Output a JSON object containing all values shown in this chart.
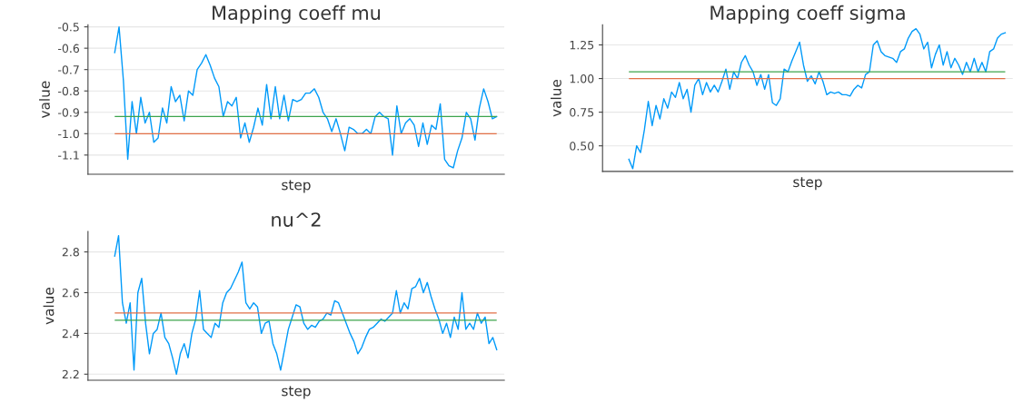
{
  "chart_data": [
    {
      "type": "line",
      "title": "Mapping coeff mu",
      "xlabel": "step",
      "ylabel": "value",
      "ylim": [
        -1.19,
        -0.49
      ],
      "yticks": [
        {
          "value": -1.1,
          "label": "-1.1"
        },
        {
          "value": -1.0,
          "label": "-1.0"
        },
        {
          "value": -0.9,
          "label": "-0.9"
        },
        {
          "value": -0.8,
          "label": "-0.8"
        },
        {
          "value": -0.7,
          "label": "-0.7"
        },
        {
          "value": -0.6,
          "label": "-0.6"
        },
        {
          "value": -0.5,
          "label": "-0.5"
        }
      ],
      "grid": "y",
      "tick_labels": "y",
      "categories": [
        null,
        null,
        null,
        null,
        null,
        null,
        null,
        null,
        null,
        null,
        null,
        null,
        null,
        null,
        null,
        null,
        null,
        null,
        null,
        null,
        null,
        null,
        null,
        null,
        null,
        null,
        null,
        null,
        null,
        null,
        null,
        null,
        null,
        null,
        null,
        null,
        null,
        null,
        null,
        null,
        null,
        null,
        null,
        null,
        null,
        null,
        null,
        null,
        null,
        null,
        null,
        null,
        null,
        null,
        null,
        null,
        null,
        null,
        null,
        null,
        null,
        null,
        null,
        null,
        null,
        null,
        null,
        null,
        null,
        null,
        null,
        null,
        null,
        null,
        null,
        null,
        null,
        null,
        null,
        null,
        null,
        null,
        null,
        null,
        null,
        null,
        null,
        null,
        null
      ],
      "series": [
        {
          "color": "#009af9",
          "values": [
            -0.62,
            -0.5,
            -0.75,
            -1.12,
            -0.85,
            -1.0,
            -0.83,
            -0.95,
            -0.9,
            -1.04,
            -1.02,
            -0.88,
            -0.95,
            -0.78,
            -0.85,
            -0.82,
            -0.94,
            -0.8,
            -0.82,
            -0.7,
            -0.67,
            -0.63,
            -0.68,
            -0.74,
            -0.78,
            -0.92,
            -0.85,
            -0.87,
            -0.83,
            -1.02,
            -0.95,
            -1.04,
            -0.97,
            -0.88,
            -0.96,
            -0.77,
            -0.93,
            -0.78,
            -0.93,
            -0.82,
            -0.94,
            -0.84,
            -0.85,
            -0.84,
            -0.81,
            -0.81,
            -0.79,
            -0.83,
            -0.9,
            -0.93,
            -0.99,
            -0.93,
            -1.0,
            -1.08,
            -0.97,
            -0.98,
            -1.0,
            -1.0,
            -0.98,
            -1.0,
            -0.92,
            -0.9,
            -0.92,
            -0.93,
            -1.1,
            -0.87,
            -1.0,
            -0.95,
            -0.93,
            -0.96,
            -1.06,
            -0.95,
            -1.05,
            -0.96,
            -0.98,
            -0.86,
            -1.12,
            -1.15,
            -1.16,
            -1.08,
            -1.02,
            -0.9,
            -0.93,
            -1.03,
            -0.88,
            -0.79,
            -0.85,
            -0.93,
            -0.92
          ]
        }
      ],
      "ref_lines": [
        {
          "axis": "y",
          "value": -0.92,
          "color": "#3da44d"
        },
        {
          "axis": "y",
          "value": -1.0,
          "color": "#e26f46"
        }
      ]
    },
    {
      "type": "line",
      "title": "Mapping coeff sigma",
      "xlabel": "step",
      "ylabel": "value",
      "ylim": [
        0.31,
        1.4
      ],
      "yticks": [
        {
          "value": 0.5,
          "label": "0.50"
        },
        {
          "value": 0.75,
          "label": "0.75"
        },
        {
          "value": 1.0,
          "label": "1.00"
        },
        {
          "value": 1.25,
          "label": "1.25"
        }
      ],
      "grid": "y",
      "tick_labels": "y",
      "categories": [
        null,
        null,
        null,
        null,
        null,
        null,
        null,
        null,
        null,
        null,
        null,
        null,
        null,
        null,
        null,
        null,
        null,
        null,
        null,
        null,
        null,
        null,
        null,
        null,
        null,
        null,
        null,
        null,
        null,
        null,
        null,
        null,
        null,
        null,
        null,
        null,
        null,
        null,
        null,
        null,
        null,
        null,
        null,
        null,
        null,
        null,
        null,
        null,
        null,
        null,
        null,
        null,
        null,
        null,
        null,
        null,
        null,
        null,
        null,
        null,
        null,
        null,
        null,
        null,
        null,
        null,
        null,
        null,
        null,
        null,
        null,
        null,
        null,
        null,
        null,
        null,
        null,
        null,
        null,
        null,
        null,
        null,
        null,
        null,
        null,
        null,
        null,
        null,
        null,
        null,
        null,
        null,
        null,
        null,
        null,
        null,
        null,
        null
      ],
      "series": [
        {
          "color": "#009af9",
          "values": [
            0.4,
            0.33,
            0.5,
            0.45,
            0.62,
            0.83,
            0.65,
            0.8,
            0.7,
            0.85,
            0.78,
            0.9,
            0.86,
            0.97,
            0.85,
            0.92,
            0.75,
            0.95,
            1.0,
            0.88,
            0.97,
            0.9,
            0.95,
            0.9,
            0.98,
            1.07,
            0.92,
            1.05,
            1.0,
            1.12,
            1.17,
            1.1,
            1.05,
            0.95,
            1.03,
            0.92,
            1.03,
            0.82,
            0.8,
            0.85,
            1.07,
            1.05,
            1.13,
            1.2,
            1.27,
            1.1,
            0.98,
            1.02,
            0.96,
            1.05,
            0.98,
            0.88,
            0.9,
            0.89,
            0.9,
            0.88,
            0.88,
            0.87,
            0.92,
            0.95,
            0.93,
            1.03,
            1.05,
            1.25,
            1.28,
            1.2,
            1.17,
            1.16,
            1.15,
            1.12,
            1.2,
            1.22,
            1.3,
            1.35,
            1.37,
            1.33,
            1.22,
            1.27,
            1.08,
            1.18,
            1.25,
            1.1,
            1.2,
            1.08,
            1.15,
            1.1,
            1.03,
            1.12,
            1.05,
            1.15,
            1.05,
            1.12,
            1.05,
            1.2,
            1.22,
            1.3,
            1.33,
            1.34
          ]
        }
      ],
      "ref_lines": [
        {
          "axis": "y",
          "value": 1.05,
          "color": "#3da44d"
        },
        {
          "axis": "y",
          "value": 1.0,
          "color": "#e26f46"
        }
      ]
    },
    {
      "type": "line",
      "title": "nu^2",
      "xlabel": "step",
      "ylabel": "value",
      "ylim": [
        2.17,
        2.9
      ],
      "yticks": [
        {
          "value": 2.2,
          "label": "2.2"
        },
        {
          "value": 2.4,
          "label": "2.4"
        },
        {
          "value": 2.6,
          "label": "2.6"
        },
        {
          "value": 2.8,
          "label": "2.8"
        }
      ],
      "grid": "y",
      "tick_labels": "y",
      "categories": [
        null,
        null,
        null,
        null,
        null,
        null,
        null,
        null,
        null,
        null,
        null,
        null,
        null,
        null,
        null,
        null,
        null,
        null,
        null,
        null,
        null,
        null,
        null,
        null,
        null,
        null,
        null,
        null,
        null,
        null,
        null,
        null,
        null,
        null,
        null,
        null,
        null,
        null,
        null,
        null,
        null,
        null,
        null,
        null,
        null,
        null,
        null,
        null,
        null,
        null,
        null,
        null,
        null,
        null,
        null,
        null,
        null,
        null,
        null,
        null,
        null,
        null,
        null,
        null,
        null,
        null,
        null,
        null,
        null,
        null,
        null,
        null,
        null,
        null,
        null,
        null,
        null,
        null,
        null,
        null,
        null,
        null,
        null,
        null,
        null,
        null,
        null,
        null,
        null,
        null,
        null,
        null,
        null,
        null,
        null,
        null,
        null,
        null,
        null,
        null
      ],
      "series": [
        {
          "color": "#009af9",
          "values": [
            2.78,
            2.88,
            2.55,
            2.45,
            2.55,
            2.22,
            2.6,
            2.67,
            2.45,
            2.3,
            2.4,
            2.42,
            2.5,
            2.38,
            2.35,
            2.28,
            2.2,
            2.3,
            2.35,
            2.28,
            2.4,
            2.47,
            2.61,
            2.42,
            2.4,
            2.38,
            2.45,
            2.43,
            2.55,
            2.6,
            2.62,
            2.66,
            2.7,
            2.75,
            2.55,
            2.52,
            2.55,
            2.53,
            2.4,
            2.45,
            2.46,
            2.35,
            2.3,
            2.22,
            2.32,
            2.42,
            2.48,
            2.54,
            2.53,
            2.45,
            2.42,
            2.44,
            2.43,
            2.46,
            2.47,
            2.5,
            2.49,
            2.56,
            2.55,
            2.5,
            2.45,
            2.4,
            2.36,
            2.3,
            2.33,
            2.38,
            2.42,
            2.43,
            2.45,
            2.47,
            2.46,
            2.48,
            2.5,
            2.61,
            2.5,
            2.55,
            2.52,
            2.62,
            2.63,
            2.67,
            2.6,
            2.65,
            2.58,
            2.52,
            2.47,
            2.4,
            2.45,
            2.38,
            2.48,
            2.42,
            2.6,
            2.42,
            2.45,
            2.42,
            2.5,
            2.45,
            2.48,
            2.35,
            2.38,
            2.32
          ]
        }
      ],
      "ref_lines": [
        {
          "axis": "y",
          "value": 2.5,
          "color": "#e26f46"
        },
        {
          "axis": "y",
          "value": 2.465,
          "color": "#3da44d"
        }
      ]
    }
  ]
}
